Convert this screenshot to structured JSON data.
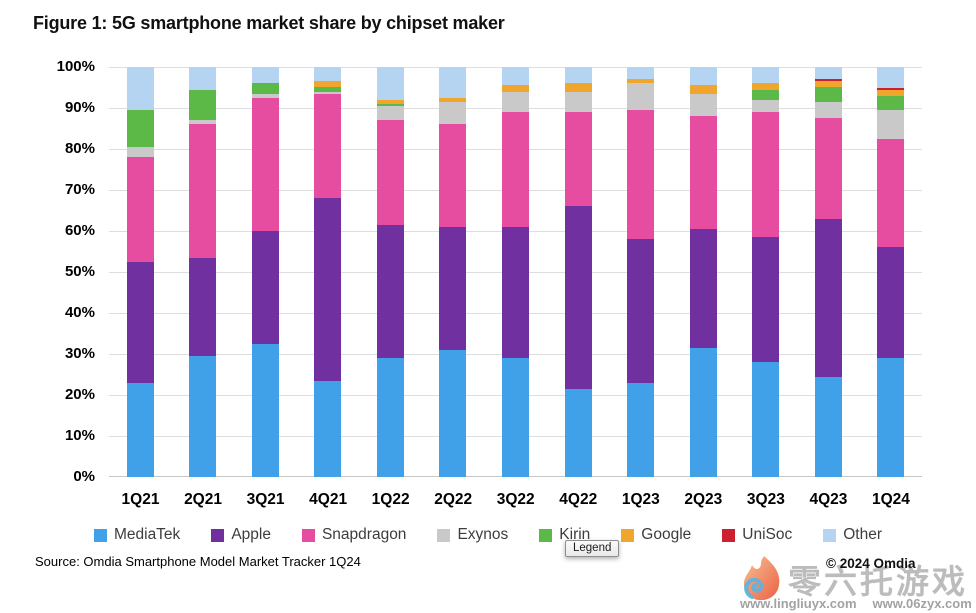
{
  "title": "Figure 1: 5G smartphone market share by chipset maker",
  "chart_data": {
    "type": "bar",
    "stacked": true,
    "percent_stacked": true,
    "title": "Figure 1: 5G smartphone market share by chipset maker",
    "xlabel": "",
    "ylabel": "",
    "ylim": [
      0,
      100
    ],
    "grid": "horizontal",
    "legend_position": "bottom",
    "yticks": [
      "0%",
      "10%",
      "20%",
      "30%",
      "40%",
      "50%",
      "60%",
      "70%",
      "80%",
      "90%",
      "100%"
    ],
    "categories": [
      "1Q21",
      "2Q21",
      "3Q21",
      "4Q21",
      "1Q22",
      "2Q22",
      "3Q22",
      "4Q22",
      "1Q23",
      "2Q23",
      "3Q23",
      "4Q23",
      "1Q24"
    ],
    "series": [
      {
        "name": "MediaTek",
        "color": "#41A1E8",
        "values": [
          23,
          29.5,
          32.5,
          23.5,
          29,
          31,
          29,
          21.5,
          23,
          31.5,
          28,
          24.5,
          29
        ]
      },
      {
        "name": "Apple",
        "color": "#7030A0",
        "values": [
          29.5,
          24,
          27.5,
          44.5,
          32.5,
          30,
          32,
          44.5,
          35,
          29,
          30.5,
          38.5,
          27
        ]
      },
      {
        "name": "Snapdragon",
        "color": "#E64CA0",
        "values": [
          25.5,
          32.5,
          32.5,
          25.5,
          25.5,
          25,
          28,
          23,
          31.5,
          27.5,
          30.5,
          24.5,
          26.5
        ]
      },
      {
        "name": "Exynos",
        "color": "#C9C9C9",
        "values": [
          2.5,
          1,
          1,
          0.5,
          3.5,
          5.5,
          5,
          5,
          6.5,
          5.5,
          3,
          4,
          7
        ]
      },
      {
        "name": "Kirin",
        "color": "#5CB947",
        "values": [
          9,
          7.5,
          2.5,
          1,
          0.5,
          0,
          0,
          0,
          0,
          0,
          2.5,
          3.5,
          3.5
        ]
      },
      {
        "name": "Google",
        "color": "#F0A62C",
        "values": [
          0,
          0,
          0,
          1.5,
          1,
          1,
          1.5,
          2,
          1,
          2,
          1.5,
          1.5,
          1.5
        ]
      },
      {
        "name": "UniSoc",
        "color": "#CE1F2E",
        "values": [
          0,
          0,
          0,
          0,
          0,
          0,
          0,
          0,
          0,
          0,
          0,
          0.5,
          0.5
        ]
      },
      {
        "name": "Other",
        "color": "#B4D4F2",
        "values": [
          10.5,
          5.5,
          4,
          3.5,
          8,
          7.5,
          4.5,
          4,
          3,
          4.5,
          4,
          3,
          5
        ]
      }
    ]
  },
  "tooltip": {
    "label": "Legend"
  },
  "footer": {
    "source": "Source: Omdia Smartphone Model Market Tracker 1Q24",
    "copyright": "© 2024 Omdia"
  },
  "watermark": {
    "cn_text": "零六托游戏",
    "url_left": "www.lingliuyx.com",
    "url_right": "www.06zyx.com"
  }
}
